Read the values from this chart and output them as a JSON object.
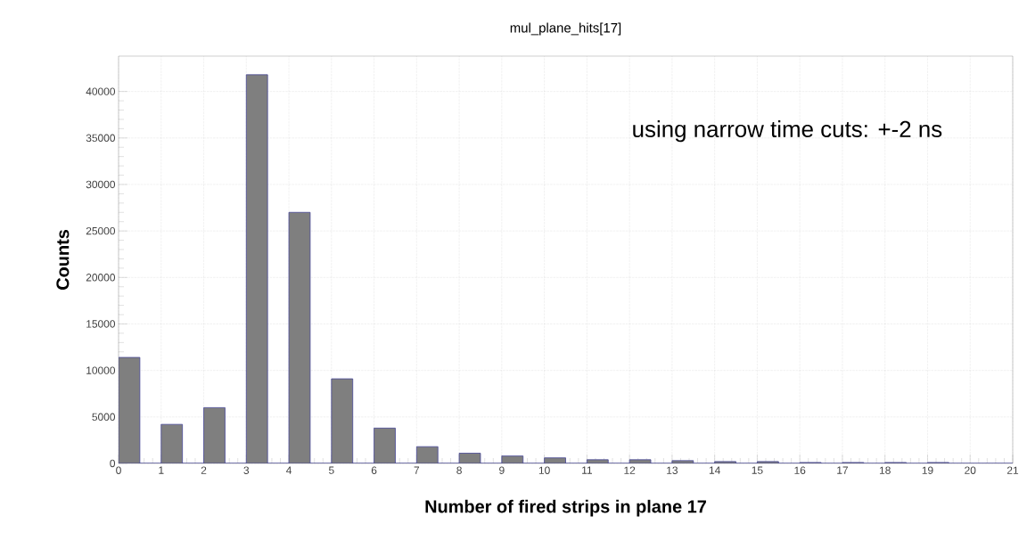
{
  "chart_data": {
    "type": "histogram",
    "title": "mul_plane_hits[17]",
    "xlabel": "Number of fired strips in plane 17",
    "ylabel": "Counts",
    "bins": [
      0,
      0.5,
      1,
      1.5,
      2,
      2.5,
      3,
      3.5,
      4,
      4.5,
      5,
      5.5,
      6,
      6.5,
      7,
      7.5,
      8,
      8.5,
      9,
      9.5,
      10,
      10.5,
      11,
      11.5,
      12,
      12.5,
      13,
      13.5,
      14,
      14.5,
      15,
      15.5,
      16,
      16.5,
      17,
      17.5,
      18,
      18.5,
      19,
      19.5,
      20,
      20.5,
      21
    ],
    "values": [
      11400,
      0,
      4200,
      0,
      6000,
      0,
      41800,
      0,
      27000,
      0,
      9100,
      0,
      3800,
      0,
      1800,
      0,
      1100,
      0,
      800,
      0,
      600,
      0,
      400,
      0,
      400,
      0,
      300,
      0,
      200,
      0,
      200,
      0,
      100,
      0,
      100,
      0,
      100,
      0,
      100,
      0,
      0,
      0
    ],
    "color": "#7f7f7f",
    "xlim": [
      0,
      21
    ],
    "xticks": [
      0,
      1,
      2,
      3,
      4,
      5,
      6,
      7,
      8,
      9,
      10,
      11,
      12,
      13,
      14,
      15,
      16,
      17,
      18,
      19,
      20,
      21
    ],
    "ylim": [
      0,
      43800
    ],
    "yticks": [
      0,
      5000,
      10000,
      15000,
      20000,
      25000,
      30000,
      35000,
      40000
    ],
    "grid": true,
    "annotations": [
      "using narrow time cuts: +-2 ns"
    ]
  }
}
